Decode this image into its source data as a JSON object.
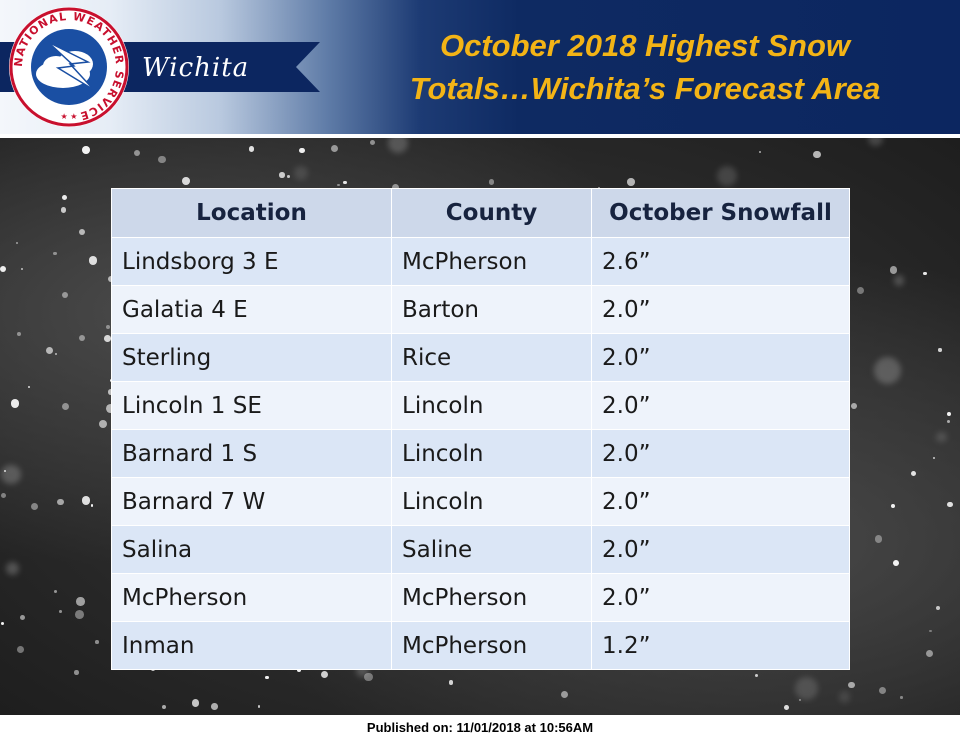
{
  "header": {
    "office_name": "Wichita",
    "logo_ring_text": "NATIONAL WEATHER SERVICE",
    "title_line1": "October 2018 Highest Snow",
    "title_line2": "Totals…Wichita’s Forecast Area",
    "title_color": "#f3b416",
    "banner_color": "#0c2660"
  },
  "table": {
    "columns": [
      "Location",
      "County",
      "October Snowfall"
    ],
    "rows": [
      {
        "location": "Lindsborg 3 E",
        "county": "McPherson",
        "snowfall": "2.6”"
      },
      {
        "location": "Galatia 4 E",
        "county": "Barton",
        "snowfall": "2.0”"
      },
      {
        "location": "Sterling",
        "county": "Rice",
        "snowfall": "2.0”"
      },
      {
        "location": "Lincoln 1 SE",
        "county": "Lincoln",
        "snowfall": "2.0”"
      },
      {
        "location": "Barnard 1 S",
        "county": "Lincoln",
        "snowfall": "2.0”"
      },
      {
        "location": "Barnard 7 W",
        "county": "Lincoln",
        "snowfall": "2.0”"
      },
      {
        "location": "Salina",
        "county": "Saline",
        "snowfall": "2.0”"
      },
      {
        "location": "McPherson",
        "county": "McPherson",
        "snowfall": "2.0”"
      },
      {
        "location": "Inman",
        "county": "McPherson",
        "snowfall": "1.2”"
      }
    ]
  },
  "footer": {
    "published": "Published on: 11/01/2018 at 10:56AM"
  }
}
